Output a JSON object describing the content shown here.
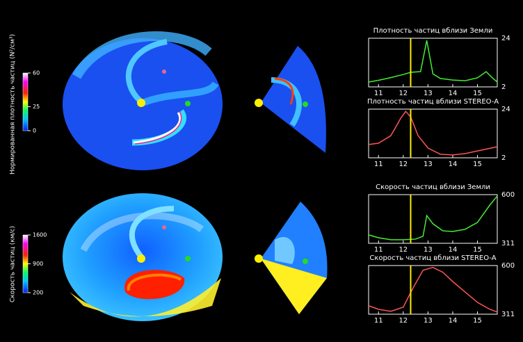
{
  "colorbars": [
    {
      "label": "Нормированная плотность частиц (N²/см³)",
      "lim": [
        0,
        60
      ],
      "ticks": [
        60,
        25,
        0
      ]
    },
    {
      "label": "Скорость частиц (км/с)",
      "lim": [
        200,
        1600
      ],
      "ticks": [
        1600,
        900,
        200
      ]
    }
  ],
  "chart_data": [
    {
      "type": "line",
      "title": "Плотность частиц вблизи Земли",
      "marker_x": 12.3,
      "xlim": [
        10.6,
        15.8
      ],
      "xticks": [
        11,
        12,
        13,
        14,
        15
      ],
      "ylim": [
        2,
        24
      ],
      "yticks": [
        24,
        2
      ],
      "series": [
        {
          "color": "#44ee33",
          "x": [
            10.6,
            11.0,
            11.5,
            12.0,
            12.3,
            12.7,
            12.95,
            13.2,
            13.5,
            14.0,
            14.5,
            15.0,
            15.35,
            15.6,
            15.8
          ],
          "values": [
            4.2,
            5.0,
            6.2,
            7.6,
            8.6,
            8.9,
            23,
            7.9,
            5.8,
            5.1,
            4.8,
            6.1,
            8.9,
            6.1,
            4.2
          ]
        }
      ]
    },
    {
      "type": "line",
      "title": "Плотность частиц вблизи STEREO-A",
      "marker_x": 12.3,
      "xlim": [
        10.6,
        15.8
      ],
      "xticks": [
        11,
        12,
        13,
        14,
        15
      ],
      "ylim": [
        2,
        24
      ],
      "yticks": [
        24,
        2
      ],
      "series": [
        {
          "color": "#ff5555",
          "x": [
            10.6,
            11.0,
            11.5,
            11.9,
            12.1,
            12.3,
            12.6,
            13.0,
            13.5,
            14.0,
            14.5,
            15.0,
            15.8
          ],
          "values": [
            8.0,
            8.6,
            12,
            19.9,
            23,
            20.5,
            12,
            6.4,
            3.6,
            3.3,
            3.9,
            5.1,
            7
          ]
        }
      ]
    },
    {
      "type": "line",
      "title": "Скорость частиц вблизи Земли",
      "marker_x": 12.3,
      "xlim": [
        10.6,
        15.8
      ],
      "xticks": [
        11,
        12,
        13,
        14,
        15
      ],
      "ylim": [
        311,
        600
      ],
      "yticks": [
        600,
        311
      ],
      "series": [
        {
          "color": "#44ee33",
          "x": [
            10.6,
            11.0,
            11.5,
            12.0,
            12.5,
            12.8,
            12.95,
            13.2,
            13.6,
            14.0,
            14.5,
            15.0,
            15.5,
            15.8
          ],
          "values": [
            361,
            344,
            332,
            332,
            336,
            353,
            476,
            427,
            385,
            381,
            394,
            435,
            538,
            592
          ]
        }
      ]
    },
    {
      "type": "line",
      "title": "Скорость частиц вблизи STEREO-A",
      "marker_x": 12.3,
      "xlim": [
        10.6,
        15.8
      ],
      "xticks": [
        11,
        12,
        13,
        14,
        15
      ],
      "ylim": [
        311,
        600
      ],
      "yticks": [
        600,
        311
      ],
      "series": [
        {
          "color": "#ff5555",
          "x": [
            10.6,
            11.0,
            11.5,
            12.0,
            12.4,
            12.8,
            13.2,
            13.6,
            14.0,
            14.5,
            15.0,
            15.5,
            15.8
          ],
          "values": [
            361,
            340,
            328,
            353,
            468,
            572,
            589,
            560,
            505,
            443,
            381,
            340,
            324
          ]
        }
      ]
    }
  ]
}
